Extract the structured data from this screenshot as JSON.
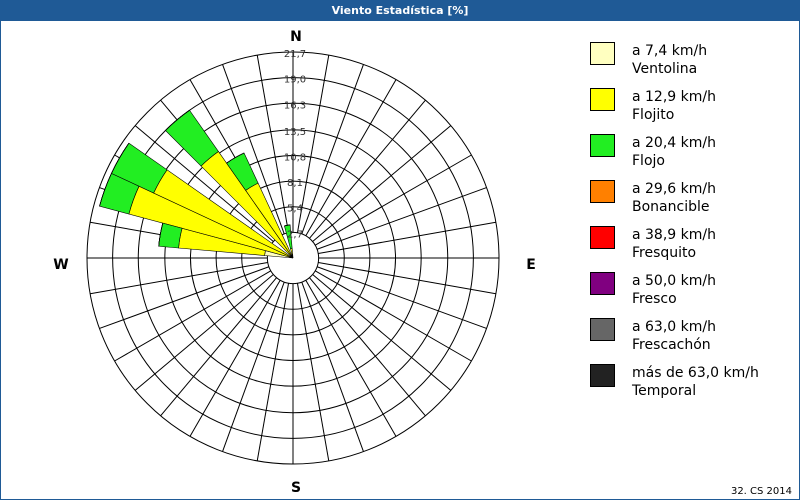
{
  "chart_data": {
    "type": "windrose",
    "title": "Viento Estadística [%]",
    "compass": [
      "N",
      "E",
      "S",
      "W"
    ],
    "rlim": [
      0,
      21.7
    ],
    "rticks": [
      {
        "value": 2.7,
        "label": "2,7"
      },
      {
        "value": 5.4,
        "label": "5,4"
      },
      {
        "value": 8.1,
        "label": "8,1"
      },
      {
        "value": 10.8,
        "label": "10,8"
      },
      {
        "value": 13.5,
        "label": "13,5"
      },
      {
        "value": 16.3,
        "label": "16,3"
      },
      {
        "value": 19.0,
        "label": "19,0"
      },
      {
        "value": 21.7,
        "label": "21,7"
      }
    ],
    "series": [
      {
        "name": "a 7,4 km/h",
        "description": "Ventolina",
        "color": "#ffffc0",
        "values": [
          0,
          0,
          0,
          0,
          0,
          0,
          0,
          0,
          0,
          0,
          0,
          0,
          0,
          0,
          0,
          0,
          0,
          0,
          0,
          0,
          0,
          0,
          0,
          0,
          0,
          0,
          0,
          0,
          3.0,
          0,
          0,
          0,
          0,
          0,
          0,
          0
        ]
      },
      {
        "name": "a 12,9 km/h",
        "description": "Flojito",
        "color": "#ffff00",
        "values": [
          0,
          0,
          0,
          0,
          0,
          0,
          0,
          0,
          0,
          0,
          0,
          0,
          0,
          0,
          0,
          0,
          0,
          0,
          0,
          0,
          0,
          0,
          0,
          0,
          0,
          0,
          0,
          0,
          9.1,
          17.9,
          16.2,
          0,
          13.7,
          8.7,
          0,
          1.0
        ]
      },
      {
        "name": "a 20,4 km/h",
        "description": "Flojo",
        "color": "#22ee22",
        "values": [
          0,
          0,
          0,
          0,
          0,
          0,
          0,
          0,
          0,
          0,
          0,
          0,
          0,
          0,
          0,
          0,
          0,
          0,
          0,
          0,
          0,
          0,
          0,
          0,
          0,
          0,
          0,
          0,
          2.1,
          3.2,
          4.9,
          0,
          5.3,
          3.5,
          0,
          2.5
        ]
      },
      {
        "name": "a 29,6 km/h",
        "description": "Bonancible",
        "color": "#ff8000",
        "values": [
          0,
          0,
          0,
          0,
          0,
          0,
          0,
          0,
          0,
          0,
          0,
          0,
          0,
          0,
          0,
          0,
          0,
          0,
          0,
          0,
          0,
          0,
          0,
          0,
          0,
          0,
          0,
          0,
          0,
          0,
          0,
          0,
          0,
          0,
          0,
          0
        ]
      },
      {
        "name": "a 38,9 km/h",
        "description": "Fresquito",
        "color": "#ff0000",
        "values": [
          0,
          0,
          0,
          0,
          0,
          0,
          0,
          0,
          0,
          0,
          0,
          0,
          0,
          0,
          0,
          0,
          0,
          0,
          0,
          0,
          0,
          0,
          0,
          0,
          0,
          0,
          0,
          0,
          0,
          0,
          0,
          0,
          0,
          0,
          0,
          0
        ]
      },
      {
        "name": "a 50,0 km/h",
        "description": "Fresco",
        "color": "#800080",
        "values": [
          0,
          0,
          0,
          0,
          0,
          0,
          0,
          0,
          0,
          0,
          0,
          0,
          0,
          0,
          0,
          0,
          0,
          0,
          0,
          0,
          0,
          0,
          0,
          0,
          0,
          0,
          0,
          0,
          0,
          0,
          0,
          0,
          0,
          0,
          0,
          0
        ]
      },
      {
        "name": "a 63,0 km/h",
        "description": "Frescachón",
        "color": "#666666",
        "values": [
          0,
          0,
          0,
          0,
          0,
          0,
          0,
          0,
          0,
          0,
          0,
          0,
          0,
          0,
          0,
          0,
          0,
          0,
          0,
          0,
          0,
          0,
          0,
          0,
          0,
          0,
          0,
          0,
          0,
          0,
          0,
          0,
          0,
          0,
          0,
          0
        ]
      },
      {
        "name": "más de 63,0 km/h",
        "description": "Temporal",
        "color": "#222222",
        "values": [
          0,
          0,
          0,
          0,
          0,
          0,
          0,
          0,
          0,
          0,
          0,
          0,
          0,
          0,
          0,
          0,
          0,
          0,
          0,
          0,
          0,
          0,
          0,
          0,
          0,
          0,
          0,
          0,
          0,
          0,
          0,
          0,
          0,
          0,
          0,
          0
        ]
      }
    ],
    "footer": "32. CS 2014"
  }
}
